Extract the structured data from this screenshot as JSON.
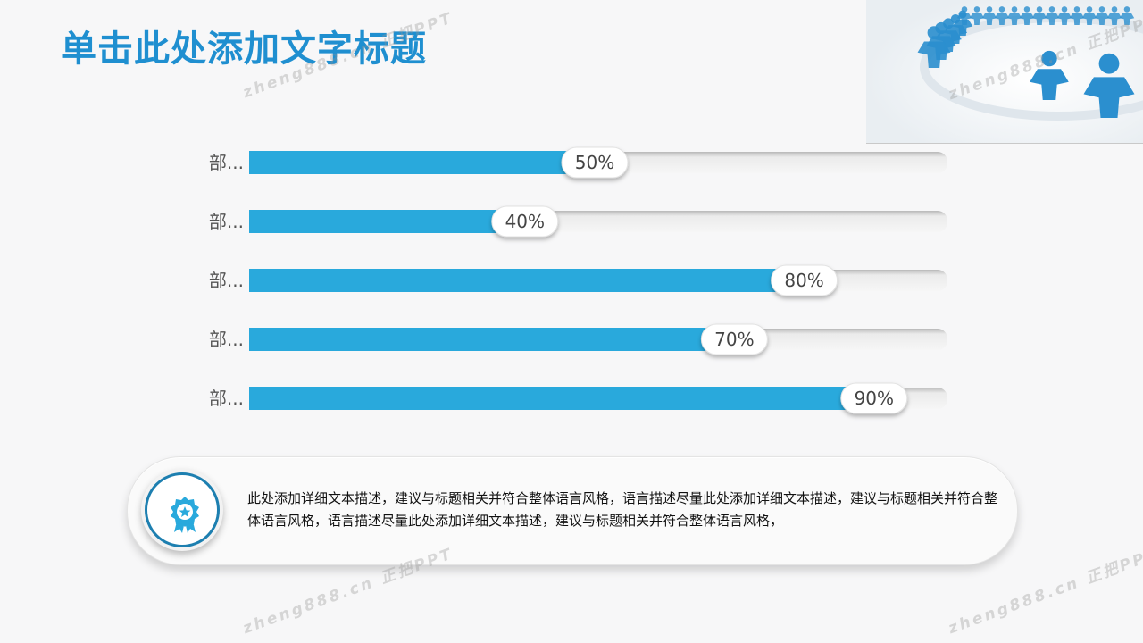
{
  "title": "单击此处添加文字标题",
  "chart_data": {
    "type": "bar",
    "orientation": "horizontal",
    "categories": [
      "部...",
      "部...",
      "部...",
      "部...",
      "部..."
    ],
    "values": [
      50,
      40,
      80,
      70,
      90
    ],
    "value_labels": [
      "50%",
      "40%",
      "80%",
      "70%",
      "90%"
    ],
    "xlim": [
      0,
      100
    ],
    "bar_color": "#29a9dc",
    "track_color": "#f0f0f0"
  },
  "description": "此处添加详细文本描述，建议与标题相关并符合整体语言风格，语言描述尽量此处添加详细文本描述，建议与标题相关并符合整体语言风格，语言描述尽量此处添加详细文本描述，建议与标题相关并符合整体语言风格，",
  "watermark": "zheng888.cn 正把PPT",
  "icons": {
    "badge": "award-ribbon-icon",
    "photo": "people-circle-figures"
  },
  "colors": {
    "title": "#1f8fd0",
    "accent": "#29a9dc",
    "ring": "#1d7fb0"
  }
}
